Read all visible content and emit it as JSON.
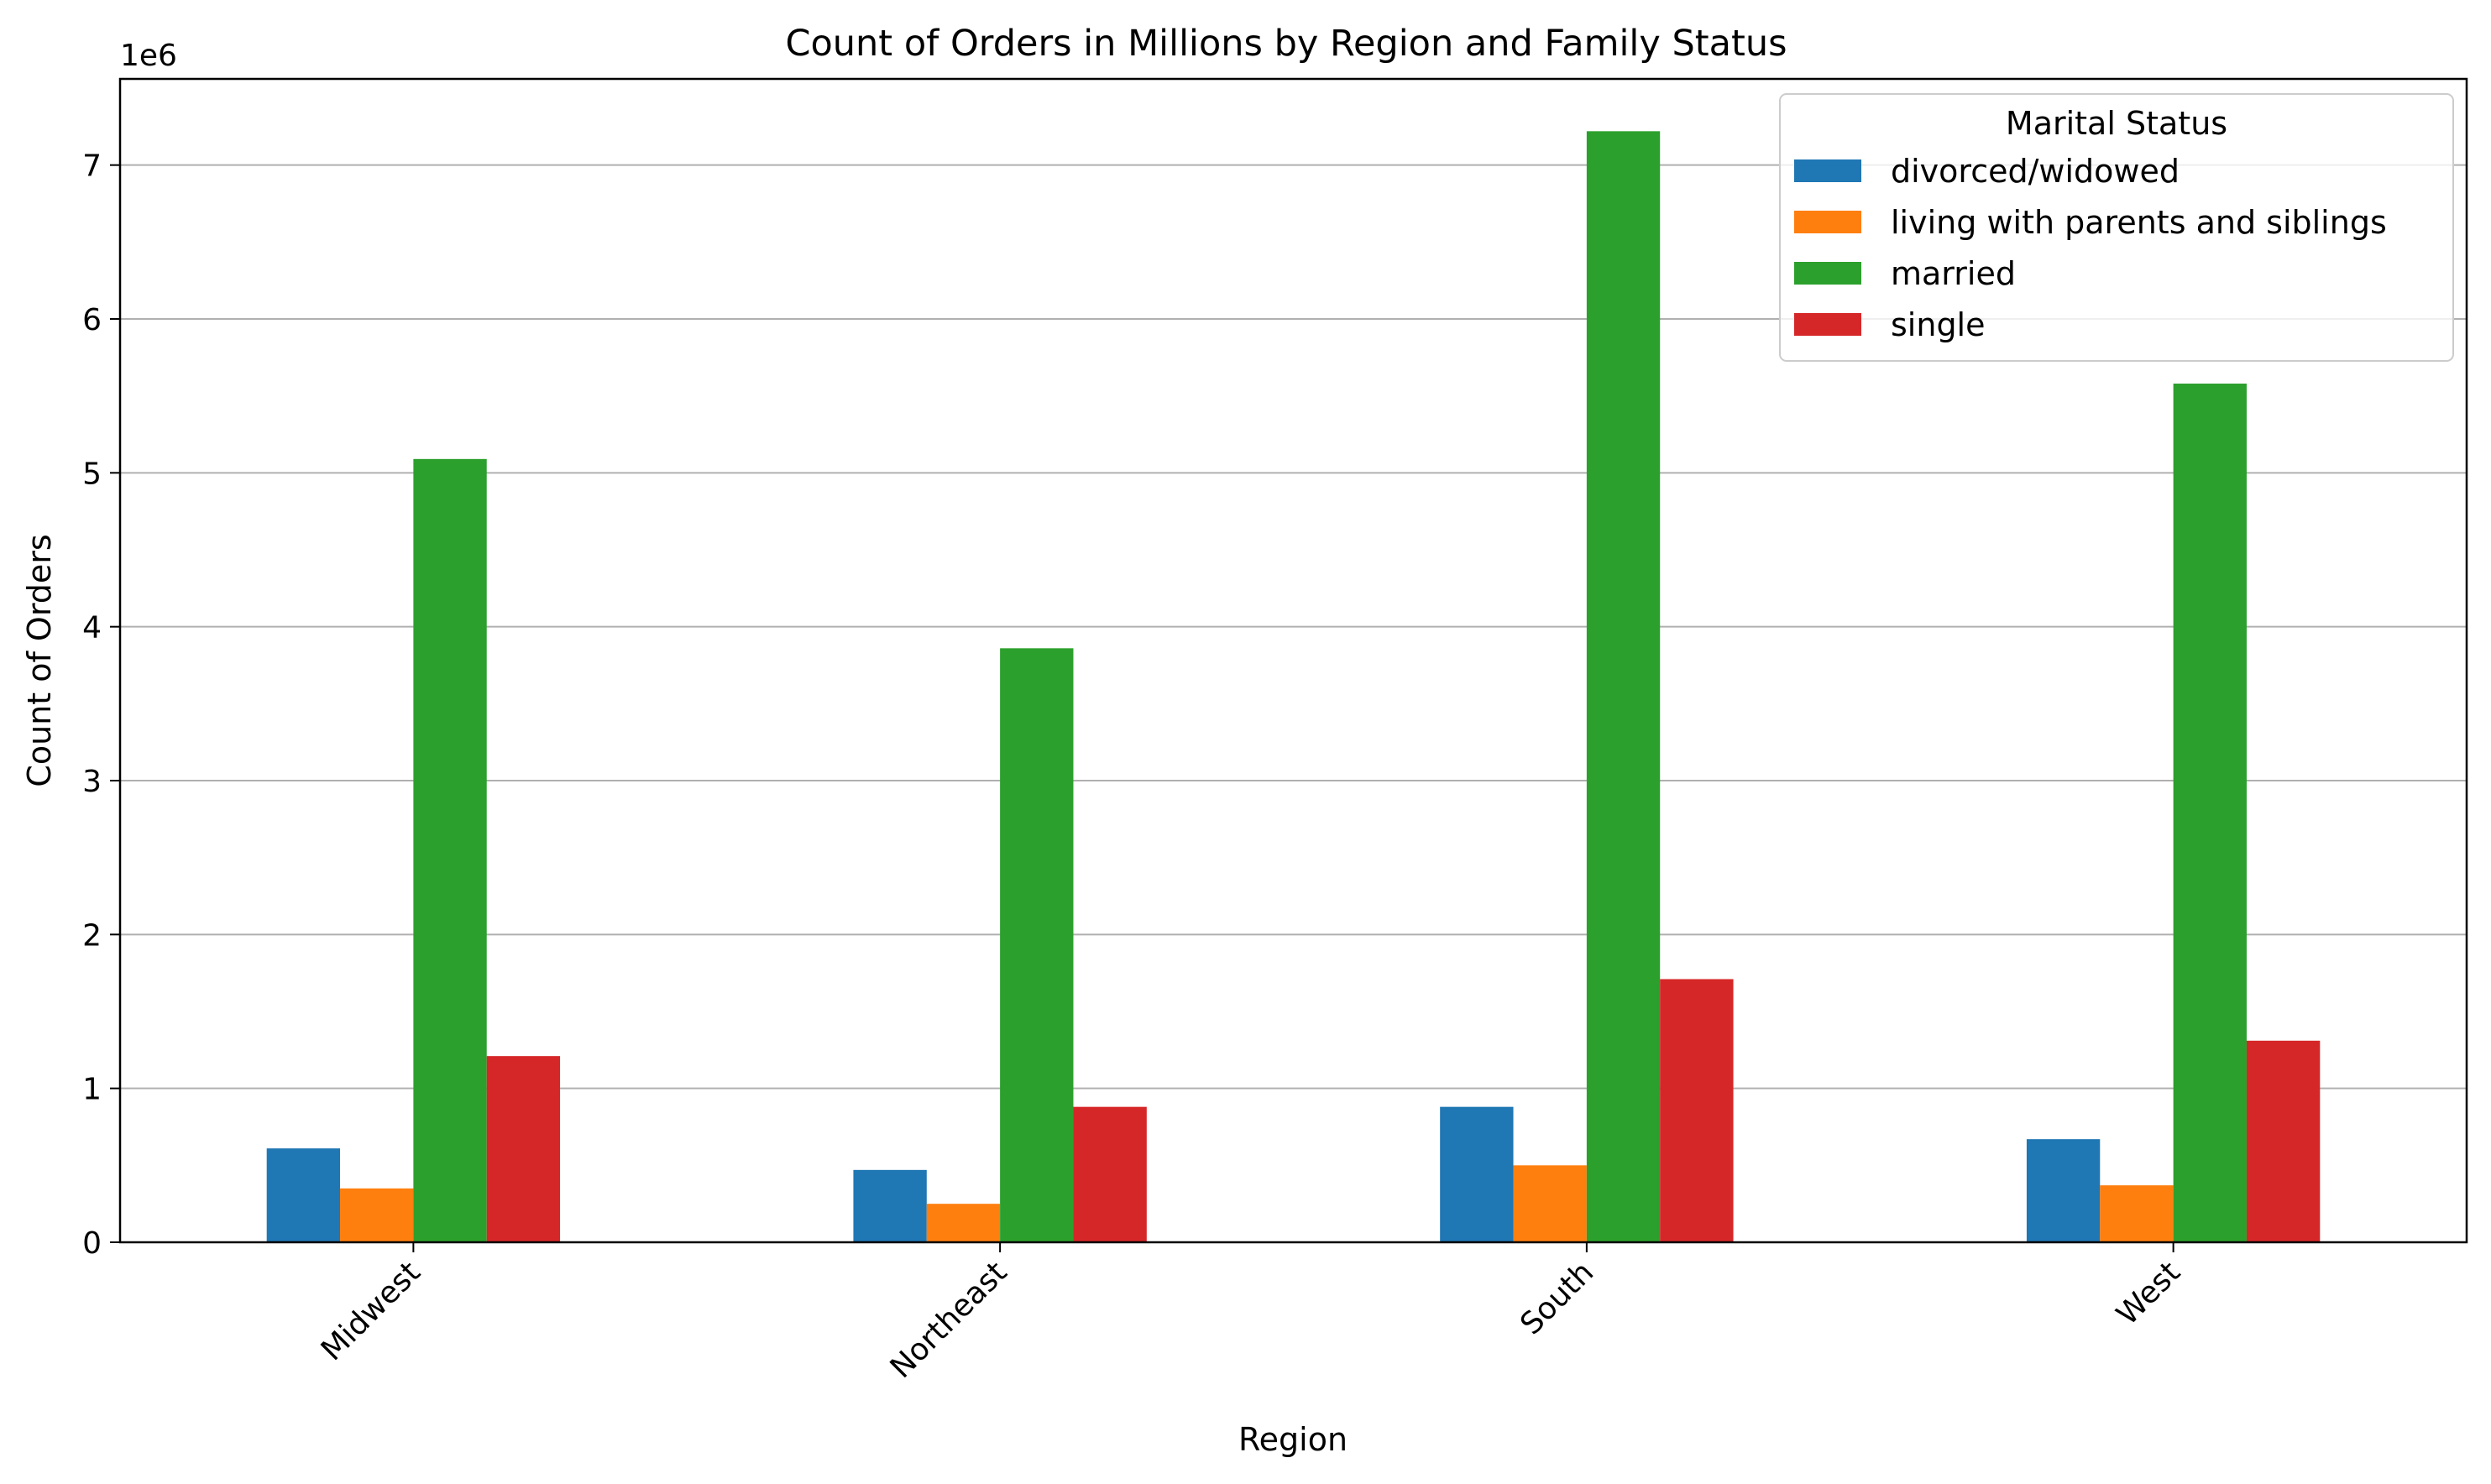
{
  "chart_data": {
    "type": "bar",
    "title": "Count of Orders in Millions by Region and Family Status",
    "xlabel": "Region",
    "ylabel": "Count of Orders",
    "y_offset_label": "1e6",
    "y_scale": 1000000,
    "ylim": [
      0,
      7560000
    ],
    "yticks": [
      0,
      1000000,
      2000000,
      3000000,
      4000000,
      5000000,
      6000000,
      7000000
    ],
    "ytick_labels": [
      "0",
      "1",
      "2",
      "3",
      "4",
      "5",
      "6",
      "7"
    ],
    "grid": "horizontal",
    "x_tick_rotation": 45,
    "categories": [
      "Midwest",
      "Northeast",
      "South",
      "West"
    ],
    "legend": {
      "title": "Marital Status",
      "placement": "top-right"
    },
    "series": [
      {
        "name": "divorced/widowed",
        "color": "#1f77b4",
        "values": [
          610000,
          470000,
          880000,
          670000
        ]
      },
      {
        "name": "living with parents and siblings",
        "color": "#ff7f0e",
        "values": [
          350000,
          250000,
          500000,
          370000
        ]
      },
      {
        "name": "married",
        "color": "#2ca02c",
        "values": [
          5090000,
          3860000,
          7220000,
          5580000
        ]
      },
      {
        "name": "single",
        "color": "#d62728",
        "values": [
          1210000,
          880000,
          1710000,
          1310000
        ]
      }
    ]
  }
}
